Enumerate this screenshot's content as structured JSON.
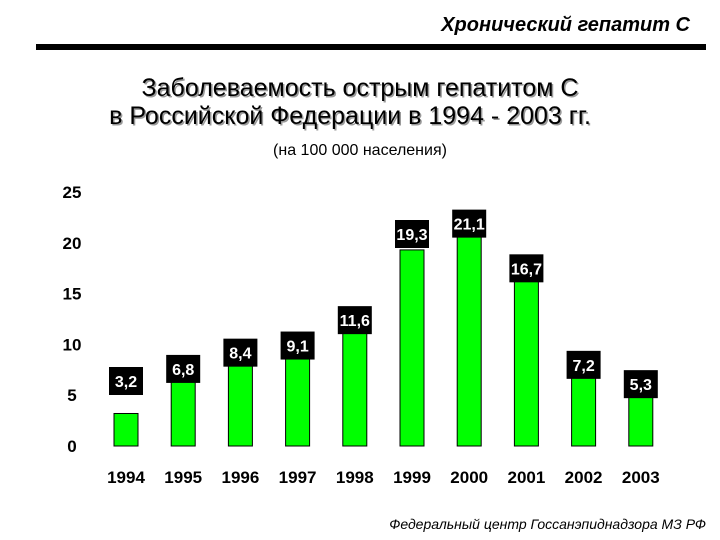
{
  "header": {
    "title": "Хронический гепатит С"
  },
  "chart_data": {
    "type": "bar",
    "title": "Заболеваемость острым гепатитом С в Российской Федерации в 1994 - 2003 гг.",
    "title_lines": [
      "Заболеваемость острым гепатитом С",
      "в Российской Федерации в 1994 - 2003 гг."
    ],
    "subtitle": "(на 100 000 населения)",
    "categories": [
      "1994",
      "1995",
      "1996",
      "1997",
      "1998",
      "1999",
      "2000",
      "2001",
      "2002",
      "2003"
    ],
    "values": [
      3.2,
      6.8,
      8.4,
      9.1,
      11.6,
      19.3,
      21.1,
      16.7,
      7.2,
      5.3
    ],
    "value_labels": [
      "3,2",
      "6,8",
      "8,4",
      "9,1",
      "11,6",
      "19,3",
      "21,1",
      "16,7",
      "7,2",
      "5,3"
    ],
    "yticks": [
      "0",
      "5",
      "10",
      "15",
      "20",
      "25"
    ],
    "ylim": [
      0,
      25
    ],
    "bar_color": "#00ff00",
    "label_bg": "#000000",
    "label_color": "#ffffff",
    "grid": false,
    "legend": false
  },
  "footer": {
    "source": "Федеральный центр Госсанэпиднадзора МЗ РФ"
  }
}
